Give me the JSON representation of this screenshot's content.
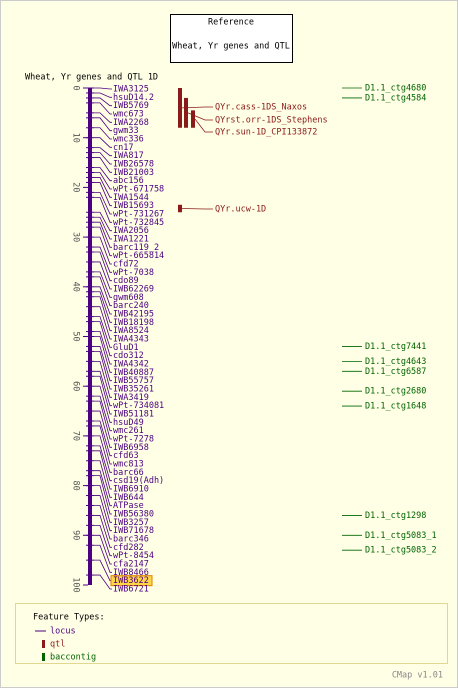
{
  "reference": {
    "title": "Reference",
    "subtitle": "Wheat, Yr genes and QTL"
  },
  "map": {
    "title": "Wheat, Yr genes and QTL 1D",
    "range": [
      0,
      100
    ],
    "ticks": [
      0,
      10,
      20,
      30,
      40,
      50,
      60,
      70,
      80,
      90,
      100
    ],
    "highlight": "IWB3622",
    "loci": [
      {
        "name": "IWA3125",
        "position": 0
      },
      {
        "name": "hsuD14.2",
        "position": 1
      },
      {
        "name": "IWB5769",
        "position": 2
      },
      {
        "name": "wmc673",
        "position": 3
      },
      {
        "name": "IWA2268",
        "position": 5
      },
      {
        "name": "gwm33",
        "position": 6
      },
      {
        "name": "wmc336",
        "position": 8
      },
      {
        "name": "cn17",
        "position": 10
      },
      {
        "name": "IWA817",
        "position": 12
      },
      {
        "name": "IWB26578",
        "position": 13
      },
      {
        "name": "IWB21003",
        "position": 14
      },
      {
        "name": "abc156",
        "position": 16
      },
      {
        "name": "wPt-671758",
        "position": 17
      },
      {
        "name": "IWA1544",
        "position": 18
      },
      {
        "name": "IWB15693",
        "position": 19
      },
      {
        "name": "wPt-731267",
        "position": 21
      },
      {
        "name": "wPt-732845",
        "position": 22
      },
      {
        "name": "IWA2056",
        "position": 25
      },
      {
        "name": "IWA1221",
        "position": 26
      },
      {
        "name": "barc119_2",
        "position": 27
      },
      {
        "name": "wPt-665814",
        "position": 28
      },
      {
        "name": "cfd72",
        "position": 30
      },
      {
        "name": "wPt-7038",
        "position": 32
      },
      {
        "name": "cdo89",
        "position": 33
      },
      {
        "name": "IWB62269",
        "position": 35
      },
      {
        "name": "gwm608",
        "position": 37
      },
      {
        "name": "barc240",
        "position": 38
      },
      {
        "name": "IWB42195",
        "position": 40
      },
      {
        "name": "IWB18198",
        "position": 41
      },
      {
        "name": "IWA8524",
        "position": 42
      },
      {
        "name": "IWA4343",
        "position": 44
      },
      {
        "name": "GluD1",
        "position": 46
      },
      {
        "name": "cdo312",
        "position": 47
      },
      {
        "name": "IWA4342",
        "position": 49
      },
      {
        "name": "IWB40887",
        "position": 50
      },
      {
        "name": "IWB55757",
        "position": 52
      },
      {
        "name": "IWB35261",
        "position": 53
      },
      {
        "name": "IWA3419",
        "position": 55
      },
      {
        "name": "wPt-734081",
        "position": 57
      },
      {
        "name": "IWB51181",
        "position": 58
      },
      {
        "name": "hsuD49",
        "position": 60
      },
      {
        "name": "wmc261",
        "position": 62
      },
      {
        "name": "wPt-7278",
        "position": 63
      },
      {
        "name": "IWB6958",
        "position": 65
      },
      {
        "name": "cfd63",
        "position": 67
      },
      {
        "name": "wmc813",
        "position": 68
      },
      {
        "name": "barc66",
        "position": 70
      },
      {
        "name": "csd19(Adh)",
        "position": 72
      },
      {
        "name": "IWB6910",
        "position": 73
      },
      {
        "name": "IWB644",
        "position": 75
      },
      {
        "name": "ATPase",
        "position": 77
      },
      {
        "name": "IWB56380",
        "position": 78
      },
      {
        "name": "IWB3257",
        "position": 80
      },
      {
        "name": "IWB71678",
        "position": 82
      },
      {
        "name": "barc346",
        "position": 84
      },
      {
        "name": "cfd282",
        "position": 86
      },
      {
        "name": "wPt-8454",
        "position": 88
      },
      {
        "name": "cfa2147",
        "position": 90
      },
      {
        "name": "IWB8466",
        "position": 92
      },
      {
        "name": "IWB3622",
        "position": 95
      },
      {
        "name": "IWB6721",
        "position": 98
      }
    ],
    "qtl": [
      {
        "name": "QYr.cass-1DS_Naxos",
        "start": 0,
        "end": 8
      },
      {
        "name": "QYrst.orr-1DS_Stephens",
        "start": 2,
        "end": 8
      },
      {
        "name": "QYr.sun-1D_CPI133872",
        "start": 4.5,
        "end": 8
      },
      {
        "name": "QYr.ucw-1D",
        "start": 23.5,
        "end": 25
      }
    ],
    "contigs": [
      {
        "name": "D1.1_ctg4680",
        "position": 0
      },
      {
        "name": "D1.1_ctg4584",
        "position": 2
      },
      {
        "name": "D1.1_ctg7441",
        "position": 52
      },
      {
        "name": "D1.1_ctg4643",
        "position": 55
      },
      {
        "name": "D1.1_ctg6587",
        "position": 57
      },
      {
        "name": "D1.1_ctg2680",
        "position": 61
      },
      {
        "name": "D1.1_ctg1648",
        "position": 64
      },
      {
        "name": "D1.1_ctg1298",
        "position": 86
      },
      {
        "name": "D1.1_ctg5083_1",
        "position": 90
      },
      {
        "name": "D1.1_ctg5083_2",
        "position": 93
      }
    ]
  },
  "legend": {
    "title": "Feature Types:",
    "items": [
      "locus",
      "qtl",
      "baccontig"
    ]
  },
  "footer": "CMap v1.01"
}
